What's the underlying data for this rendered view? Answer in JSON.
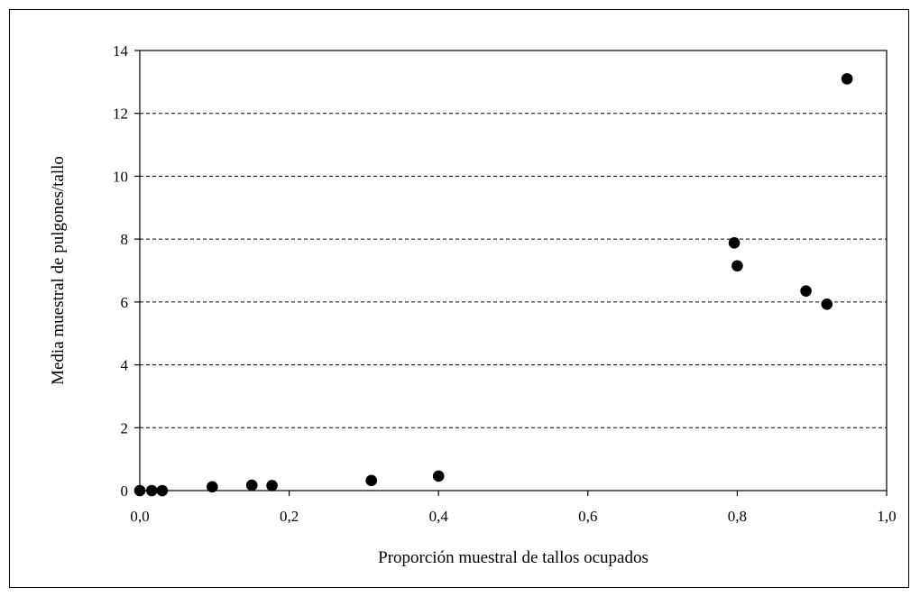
{
  "chart_data": {
    "type": "scatter",
    "title": "",
    "xlabel": "Proporción muestral de tallos ocupados",
    "ylabel": "Media muestral de pulgones/tallo",
    "xlim": [
      0,
      1.0
    ],
    "ylim": [
      0,
      14
    ],
    "x_ticks": [
      0,
      0.2,
      0.4,
      0.6,
      0.8,
      1.0
    ],
    "x_tick_labels": [
      "0,0",
      "0,2",
      "0,4",
      "0,6",
      "0,8",
      "1,0"
    ],
    "y_ticks": [
      0,
      2,
      4,
      6,
      8,
      10,
      12,
      14
    ],
    "y_tick_labels": [
      "0",
      "2",
      "4",
      "6",
      "8",
      "10",
      "12",
      "14"
    ],
    "grid": "horizontal dashed",
    "legend": "none",
    "marker_color": "#000000",
    "series": [
      {
        "points": [
          {
            "x": 0.0,
            "y": 0.0
          },
          {
            "x": 0.016,
            "y": 0.0
          },
          {
            "x": 0.03,
            "y": 0.0
          },
          {
            "x": 0.097,
            "y": 0.12
          },
          {
            "x": 0.15,
            "y": 0.17
          },
          {
            "x": 0.177,
            "y": 0.16
          },
          {
            "x": 0.31,
            "y": 0.32
          },
          {
            "x": 0.4,
            "y": 0.46
          },
          {
            "x": 0.796,
            "y": 7.88
          },
          {
            "x": 0.8,
            "y": 7.15
          },
          {
            "x": 0.892,
            "y": 6.35
          },
          {
            "x": 0.92,
            "y": 5.93
          },
          {
            "x": 0.947,
            "y": 13.1
          }
        ]
      }
    ]
  }
}
